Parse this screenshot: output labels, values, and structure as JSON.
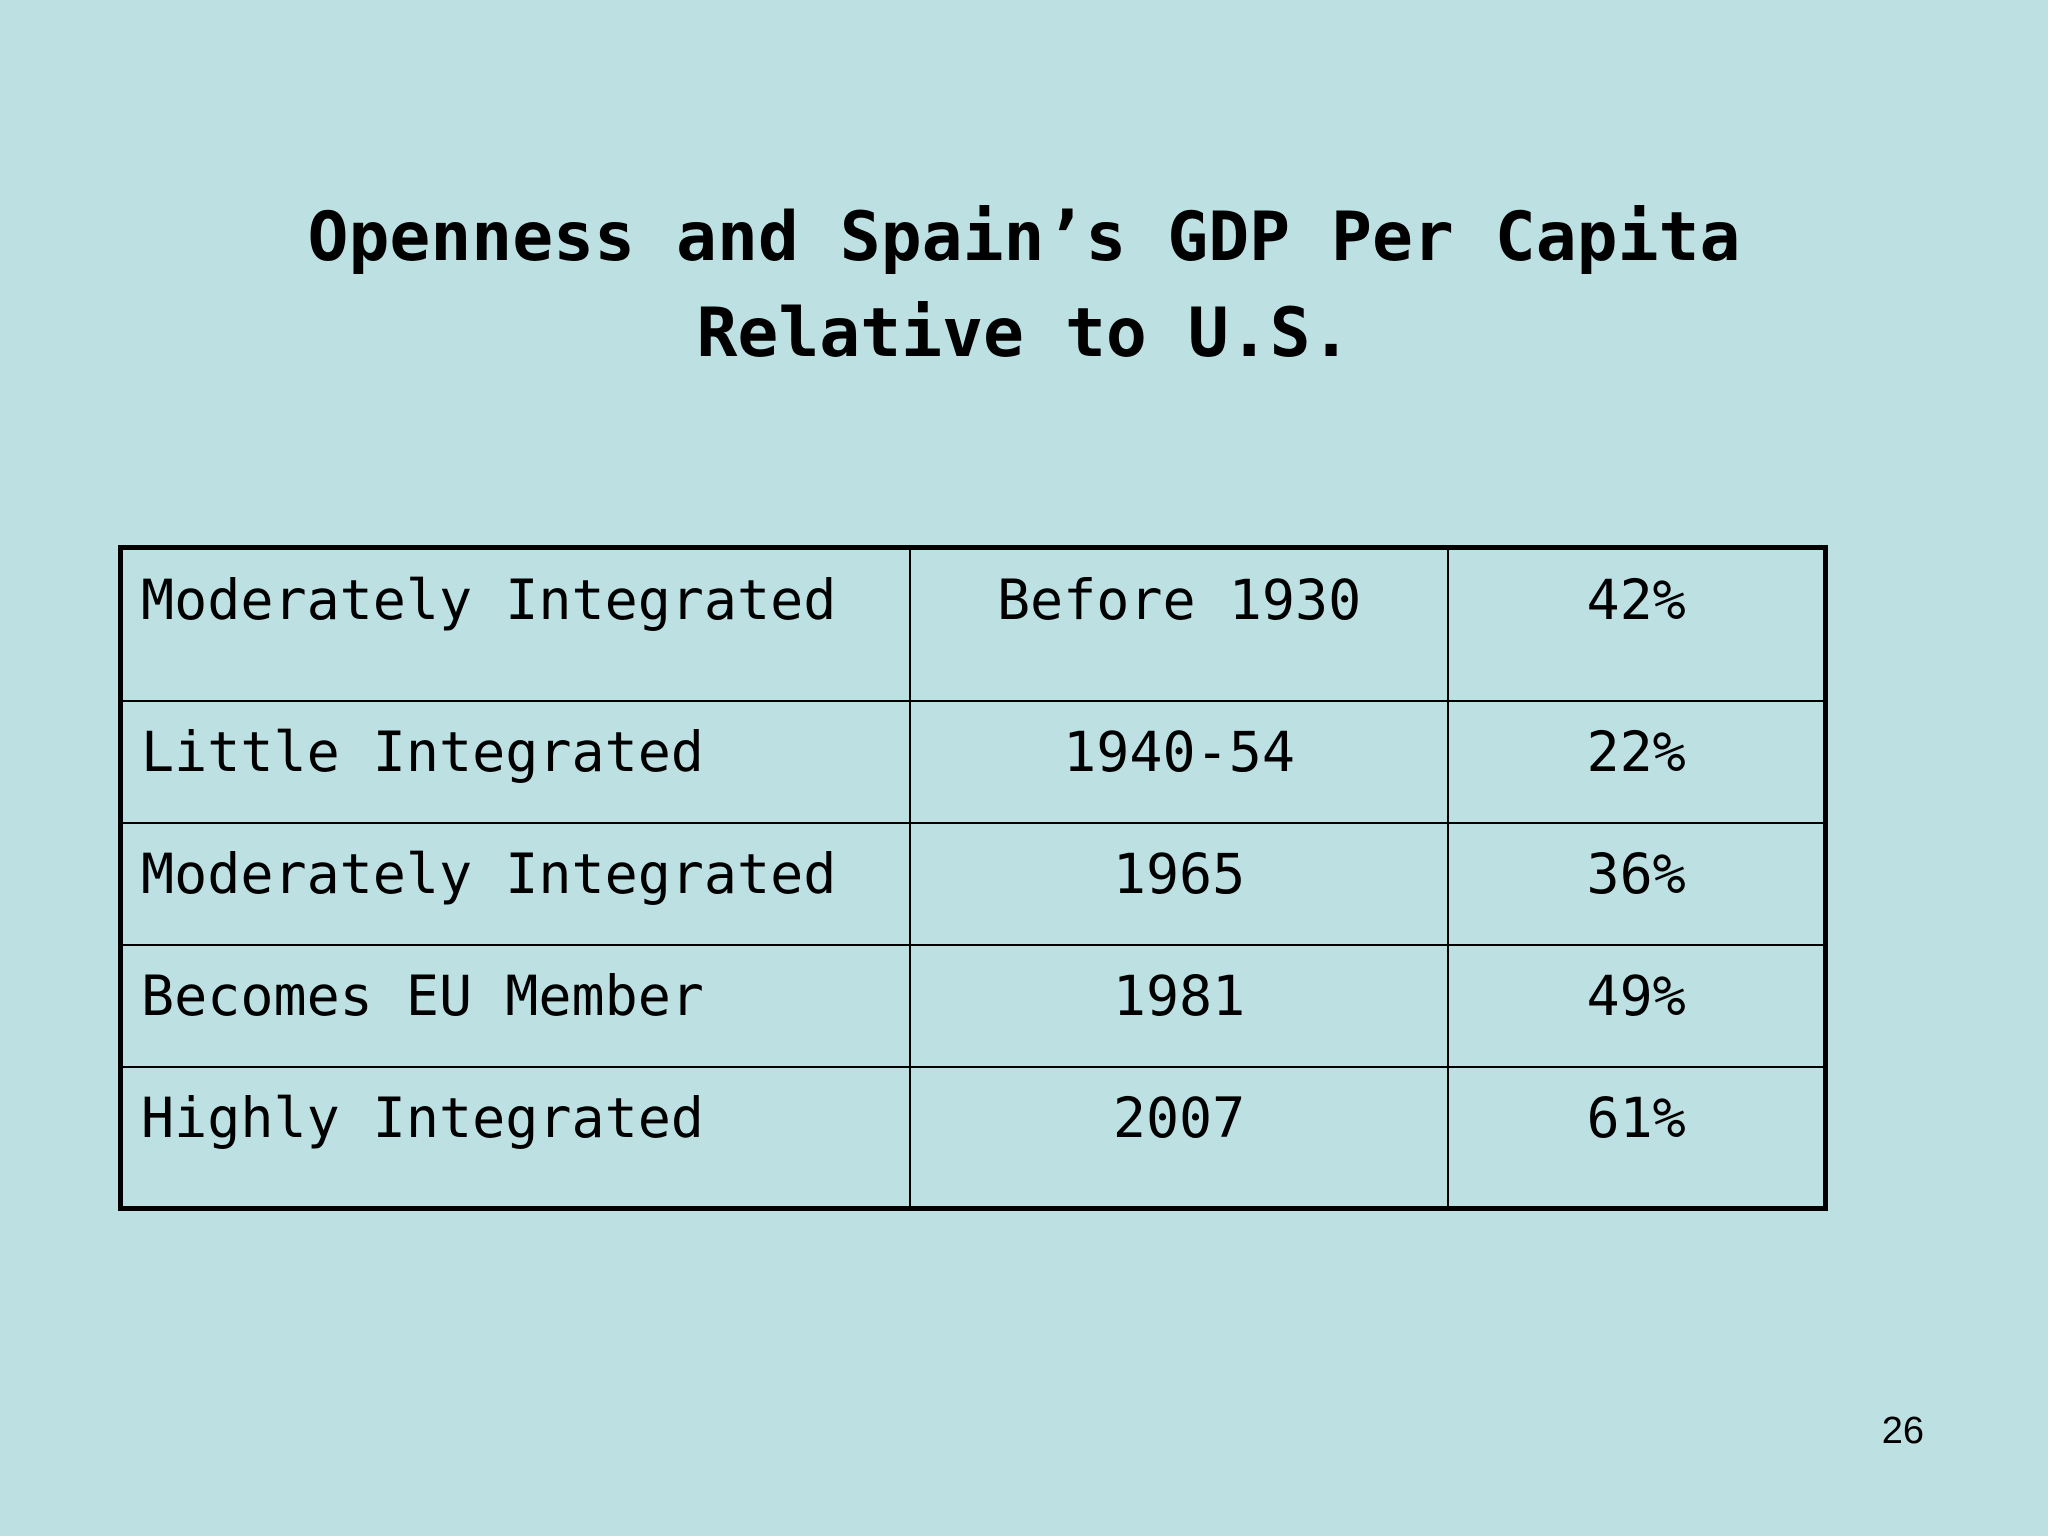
{
  "slide": {
    "title_line1": "Openness and Spain’s GDP Per Capita",
    "title_line2": "Relative to U.S.",
    "page_number": "26"
  },
  "table": {
    "rows": [
      {
        "integration": "Moderately Integrated",
        "period": "Before 1930",
        "gdp_share": "42%"
      },
      {
        "integration": "Little Integrated",
        "period": "1940-54",
        "gdp_share": "22%"
      },
      {
        "integration": "Moderately Integrated",
        "period": "1965",
        "gdp_share": "36%"
      },
      {
        "integration": "Becomes EU Member",
        "period": "1981",
        "gdp_share": "49%"
      },
      {
        "integration": "Highly Integrated",
        "period": "2007",
        "gdp_share": "61%"
      }
    ]
  },
  "colors": {
    "background": "#bde0e3",
    "text": "#000000"
  }
}
